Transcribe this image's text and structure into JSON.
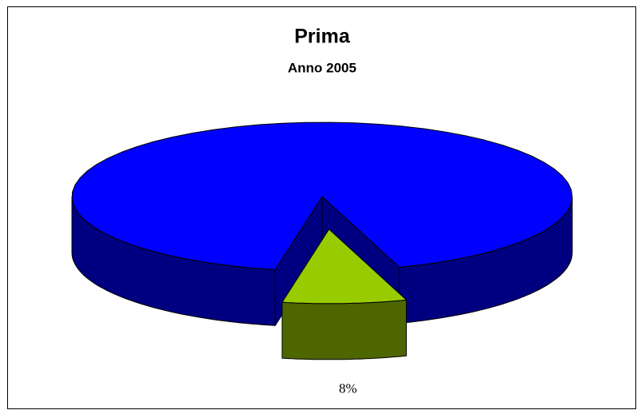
{
  "chart_data": {
    "type": "pie",
    "title": "Prima",
    "subtitle": "Anno 2005",
    "values": [
      92,
      8
    ],
    "value_labels": [
      null,
      "8%"
    ],
    "colors": [
      "#0000ff",
      "#99cc00"
    ],
    "side_colors": [
      "#000080",
      "#4d6600"
    ]
  }
}
